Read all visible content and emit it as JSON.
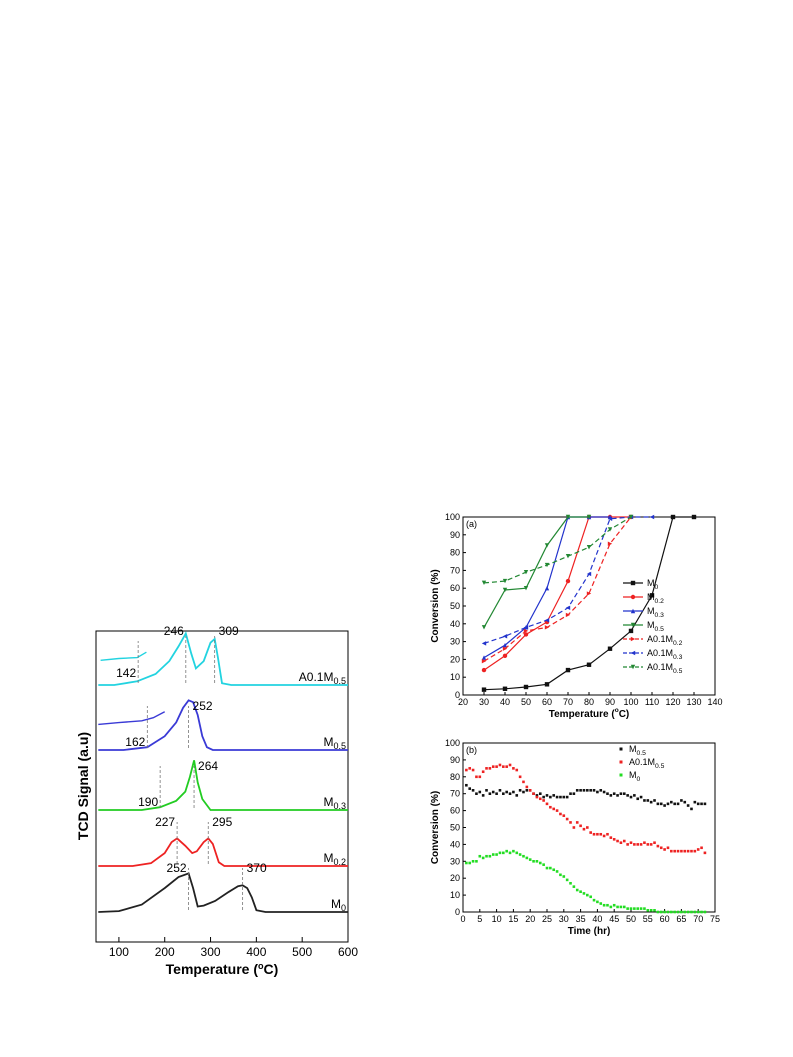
{
  "chart_data": [
    {
      "type": "line",
      "xlabel": "Temperature (°C)",
      "ylabel": "TCD Signal (a.u)",
      "xlim": [
        50,
        600
      ],
      "x_ticks": [
        "100",
        "200",
        "300",
        "400",
        "500",
        "600"
      ],
      "series": [
        {
          "name": "A0.1M0.5",
          "color": "#22d3e0",
          "x": [
            55,
            90,
            140,
            180,
            210,
            230,
            246,
            258,
            268,
            285,
            300,
            309,
            316,
            325,
            345,
            600
          ],
          "y": [
            0,
            0,
            0.4,
            1.2,
            2.6,
            4.2,
            5.6,
            3.4,
            1.8,
            2.6,
            4.6,
            5.0,
            3.0,
            0.2,
            0,
            0
          ],
          "peak_labels": [
            "142",
            "246",
            "309"
          ],
          "peak_x": [
            142,
            246,
            309
          ],
          "inset": {
            "x": [
              60,
              100,
              140,
              160
            ],
            "y": [
              0.6,
              1.0,
              1.2,
              2.4
            ]
          }
        },
        {
          "name": "M0.5",
          "color": "#3a3ad6",
          "x": [
            55,
            110,
            162,
            200,
            225,
            240,
            252,
            262,
            272,
            282,
            292,
            305,
            600
          ],
          "y": [
            0,
            0,
            0.3,
            1.5,
            3.0,
            4.6,
            5.4,
            5.2,
            3.8,
            1.5,
            0.3,
            0,
            0
          ],
          "peak_labels": [
            "162",
            "252"
          ],
          "peak_x": [
            162,
            252
          ],
          "inset": {
            "x": [
              55,
              100,
              150,
              175,
              200
            ],
            "y": [
              0.8,
              1.2,
              1.6,
              2.3,
              3.6
            ]
          }
        },
        {
          "name": "M0.3",
          "color": "#22cc22",
          "x": [
            55,
            150,
            190,
            225,
            245,
            255,
            264,
            272,
            282,
            300,
            600
          ],
          "y": [
            0,
            0,
            0.3,
            1.0,
            2.0,
            3.6,
            5.4,
            3.0,
            1.2,
            0,
            0
          ],
          "peak_labels": [
            "190",
            "264"
          ],
          "peak_x": [
            190,
            264
          ]
        },
        {
          "name": "M0.2",
          "color": "#ee2222",
          "x": [
            55,
            130,
            170,
            200,
            215,
            227,
            245,
            260,
            270,
            285,
            295,
            305,
            318,
            330,
            600
          ],
          "y": [
            0,
            0,
            0.3,
            1.4,
            2.6,
            3.0,
            2.2,
            1.4,
            1.6,
            2.6,
            3.0,
            2.4,
            0.4,
            0,
            0
          ],
          "peak_labels": [
            "227",
            "295"
          ],
          "peak_x": [
            227,
            295
          ]
        },
        {
          "name": "M0",
          "color": "#222222",
          "x": [
            55,
            100,
            150,
            200,
            230,
            252,
            262,
            272,
            285,
            310,
            340,
            360,
            370,
            380,
            390,
            400,
            420,
            600
          ],
          "y": [
            0,
            0.1,
            0.8,
            2.6,
            3.8,
            4.2,
            2.6,
            0.6,
            0.7,
            1.2,
            2.2,
            2.8,
            2.9,
            2.6,
            1.6,
            0.2,
            0,
            0
          ],
          "peak_labels": [
            "252",
            "370"
          ],
          "peak_x": [
            252,
            370
          ]
        }
      ]
    },
    {
      "type": "line",
      "panel_label": "(a)",
      "xlabel": "Temperature (°C)",
      "ylabel": "Conversion (%)",
      "xlim": [
        20,
        140
      ],
      "ylim": [
        0,
        100
      ],
      "x_ticks": [
        "20",
        "30",
        "40",
        "50",
        "60",
        "70",
        "80",
        "90",
        "100",
        "110",
        "120",
        "130",
        "140"
      ],
      "y_ticks": [
        "0",
        "10",
        "20",
        "30",
        "40",
        "50",
        "60",
        "70",
        "80",
        "90",
        "100"
      ],
      "legend_position": "right",
      "series": [
        {
          "name": "M0",
          "color": "#111111",
          "dash": false,
          "marker": "square",
          "x": [
            30,
            40,
            50,
            60,
            70,
            80,
            90,
            100,
            110,
            120,
            130
          ],
          "y": [
            3,
            3.5,
            4.5,
            6,
            14,
            17,
            26,
            36,
            56,
            100,
            100
          ]
        },
        {
          "name": "M0.2",
          "color": "#ee2222",
          "dash": false,
          "marker": "circle",
          "x": [
            30,
            40,
            50,
            60,
            70,
            80,
            90,
            100
          ],
          "y": [
            14,
            22,
            34,
            41,
            64,
            100,
            100,
            100
          ]
        },
        {
          "name": "M0.3",
          "color": "#2233cc",
          "dash": false,
          "marker": "triangle-up",
          "x": [
            30,
            40,
            50,
            60,
            70,
            80,
            90
          ],
          "y": [
            21,
            28,
            38,
            60,
            100,
            100,
            100
          ]
        },
        {
          "name": "M0.5",
          "color": "#228833",
          "dash": false,
          "marker": "triangle-down",
          "x": [
            30,
            40,
            50,
            60,
            70,
            80
          ],
          "y": [
            38,
            59,
            60,
            84,
            100,
            100
          ]
        },
        {
          "name": "A0.1M0.2",
          "color": "#ee2222",
          "dash": true,
          "marker": "triangle-right",
          "x": [
            30,
            40,
            50,
            60,
            70,
            80,
            90,
            100
          ],
          "y": [
            19,
            26,
            36,
            38,
            45,
            57,
            85,
            100
          ]
        },
        {
          "name": "A0.1M0.3",
          "color": "#2233cc",
          "dash": true,
          "marker": "triangle-left",
          "x": [
            30,
            40,
            50,
            60,
            70,
            80,
            90,
            100,
            110
          ],
          "y": [
            29,
            33,
            38,
            42,
            49,
            68,
            99,
            100,
            100
          ]
        },
        {
          "name": "A0.1M0.5",
          "color": "#228833",
          "dash": true,
          "marker": "triangle-down",
          "x": [
            30,
            40,
            50,
            60,
            70,
            80,
            90,
            100
          ],
          "y": [
            63,
            64,
            69,
            73,
            78,
            83,
            93,
            100
          ]
        }
      ]
    },
    {
      "type": "scatter",
      "panel_label": "(b)",
      "xlabel": "Time (hr)",
      "ylabel": "Conversion (%)",
      "xlim": [
        0,
        75
      ],
      "ylim": [
        0,
        100
      ],
      "x_ticks": [
        "0",
        "5",
        "10",
        "15",
        "20",
        "25",
        "30",
        "35",
        "40",
        "45",
        "50",
        "55",
        "60",
        "65",
        "70",
        "75"
      ],
      "y_ticks": [
        "0",
        "10",
        "20",
        "30",
        "40",
        "50",
        "60",
        "70",
        "80",
        "90",
        "100"
      ],
      "legend_position": "top-right",
      "series": [
        {
          "name": "M0.5",
          "color": "#111111",
          "x": [
            1,
            2,
            3,
            4,
            5,
            6,
            7,
            8,
            9,
            10,
            11,
            12,
            13,
            14,
            15,
            16,
            17,
            18,
            19,
            20,
            21,
            22,
            23,
            24,
            25,
            26,
            27,
            28,
            29,
            30,
            31,
            32,
            33,
            34,
            35,
            36,
            37,
            38,
            39,
            40,
            41,
            42,
            43,
            44,
            45,
            46,
            47,
            48,
            49,
            50,
            51,
            52,
            53,
            54,
            55,
            56,
            57,
            58,
            59,
            60,
            61,
            62,
            63,
            64,
            65,
            66,
            67,
            68,
            69,
            70,
            71,
            72
          ],
          "y": [
            75,
            73,
            72,
            70,
            71,
            69,
            72,
            70,
            71,
            70,
            72,
            70,
            71,
            70,
            71,
            69,
            72,
            71,
            72,
            72,
            70,
            69,
            70,
            68,
            69,
            68,
            69,
            68,
            68,
            68,
            68,
            70,
            70,
            72,
            72,
            72,
            72,
            72,
            72,
            71,
            72,
            71,
            70,
            69,
            70,
            69,
            70,
            70,
            69,
            68,
            69,
            67,
            68,
            66,
            66,
            65,
            66,
            64,
            64,
            63,
            64,
            65,
            64,
            64,
            66,
            65,
            63,
            61,
            65,
            64,
            64,
            64
          ]
        },
        {
          "name": "A0.1M0.5",
          "color": "#ee2222",
          "x": [
            1,
            2,
            3,
            4,
            5,
            6,
            7,
            8,
            9,
            10,
            11,
            12,
            13,
            14,
            15,
            16,
            17,
            18,
            19,
            20,
            21,
            22,
            23,
            24,
            25,
            26,
            27,
            28,
            29,
            30,
            31,
            32,
            33,
            34,
            35,
            36,
            37,
            38,
            39,
            40,
            41,
            42,
            43,
            44,
            45,
            46,
            47,
            48,
            49,
            50,
            51,
            52,
            53,
            54,
            55,
            56,
            57,
            58,
            59,
            60,
            61,
            62,
            63,
            64,
            65,
            66,
            67,
            68,
            69,
            70,
            71,
            72
          ],
          "y": [
            84,
            85,
            84,
            80,
            80,
            83,
            85,
            85,
            86,
            86,
            87,
            86,
            86,
            87,
            85,
            84,
            80,
            77,
            74,
            72,
            70,
            68,
            67,
            66,
            64,
            62,
            61,
            60,
            58,
            57,
            55,
            53,
            50,
            53,
            51,
            49,
            50,
            47,
            46,
            46,
            46,
            45,
            46,
            44,
            43,
            42,
            41,
            42,
            40,
            41,
            40,
            40,
            40,
            41,
            40,
            40,
            41,
            39,
            38,
            37,
            38,
            36,
            36,
            36,
            36,
            36,
            36,
            36,
            36,
            37,
            38,
            35
          ]
        },
        {
          "name": "M0",
          "color": "#22dd22",
          "x": [
            1,
            2,
            3,
            4,
            5,
            6,
            7,
            8,
            9,
            10,
            11,
            12,
            13,
            14,
            15,
            16,
            17,
            18,
            19,
            20,
            21,
            22,
            23,
            24,
            25,
            26,
            27,
            28,
            29,
            30,
            31,
            32,
            33,
            34,
            35,
            36,
            37,
            38,
            39,
            40,
            41,
            42,
            43,
            44,
            45,
            46,
            47,
            48,
            49,
            50,
            51,
            52,
            53,
            54,
            55,
            56,
            57,
            58,
            59,
            60,
            61,
            62,
            63,
            64,
            65,
            66,
            67,
            68,
            69,
            70,
            71,
            72
          ],
          "y": [
            29,
            29,
            30,
            30,
            33,
            32,
            33,
            33,
            34,
            34,
            35,
            35,
            36,
            35,
            36,
            35,
            34,
            33,
            32,
            31,
            30,
            30,
            29,
            28,
            26,
            26,
            25,
            24,
            22,
            21,
            19,
            17,
            15,
            13,
            12,
            11,
            10,
            9,
            7,
            6,
            5,
            4,
            4,
            3,
            4,
            3,
            3,
            3,
            2,
            2,
            2,
            2,
            2,
            2,
            1,
            1,
            1,
            0,
            0,
            0,
            0,
            0,
            0,
            0,
            0,
            0,
            0,
            0,
            0,
            0,
            0,
            0
          ]
        }
      ]
    }
  ]
}
